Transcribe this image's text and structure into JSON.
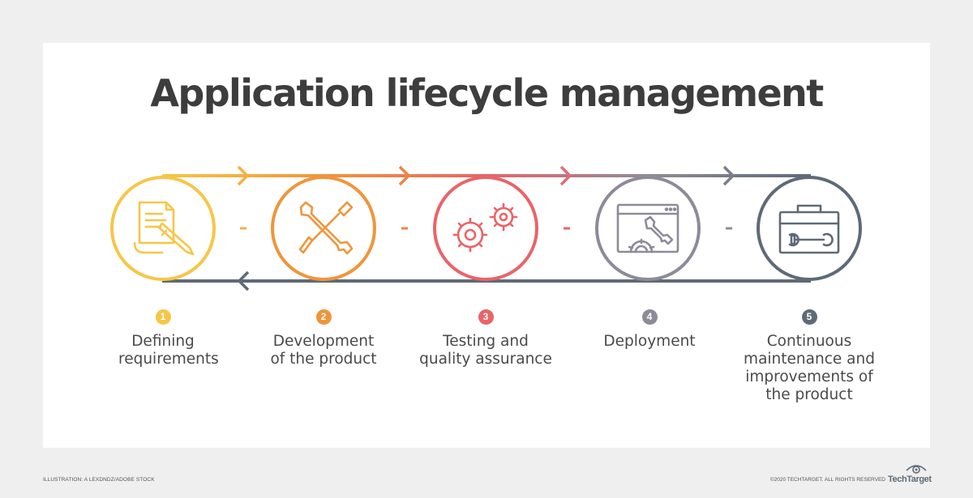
{
  "title": "Application lifecycle management",
  "steps": [
    {
      "number": "1",
      "label": "Defining requirements",
      "color": "#f7c648",
      "icon": "document-pencil-icon"
    },
    {
      "number": "2",
      "label": "Development of the product",
      "color": "#f0953a",
      "icon": "wrench-screwdriver-icon"
    },
    {
      "number": "3",
      "label": "Testing and quality assurance",
      "color": "#e96467",
      "icon": "gears-icon"
    },
    {
      "number": "4",
      "label": "Deployment",
      "color": "#8e8b98",
      "icon": "browser-wrench-gear-icon"
    },
    {
      "number": "5",
      "label": "Continuous maintenance and improvements of the product",
      "color": "#5f6a78",
      "icon": "toolbox-icon"
    }
  ],
  "footer": {
    "credit": "ILLUSTRATION: A LEXDNDZ/ADOBE STOCK",
    "copyright": "©2020 TECHTARGET. ALL RIGHTS RESERVED",
    "logo": "TechTarget"
  }
}
